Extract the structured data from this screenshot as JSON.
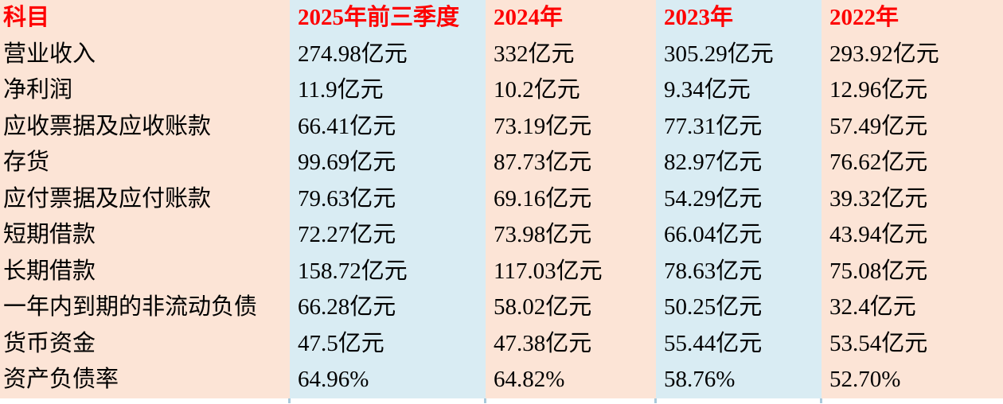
{
  "table": {
    "title": "financial-comparison-table",
    "header_text_color": "#fe0000",
    "peach_column_color": "#fce4d6",
    "blue_column_color": "#d9ecf3",
    "columns": [
      "科目",
      "2025年前三季度",
      "2024年",
      "2023年",
      "2022年"
    ],
    "rows": [
      {
        "label": "营业收入",
        "values": [
          "274.98亿元",
          "332亿元",
          "305.29亿元",
          "293.92亿元"
        ]
      },
      {
        "label": "净利润",
        "values": [
          "11.9亿元",
          "10.2亿元",
          "9.34亿元",
          "12.96亿元"
        ]
      },
      {
        "label": "应收票据及应收账款",
        "values": [
          "66.41亿元",
          "73.19亿元",
          "77.31亿元",
          "57.49亿元"
        ]
      },
      {
        "label": "存货",
        "values": [
          "99.69亿元",
          "87.73亿元",
          "82.97亿元",
          "76.62亿元"
        ]
      },
      {
        "label": "应付票据及应付账款",
        "values": [
          "79.63亿元",
          "69.16亿元",
          "54.29亿元",
          "39.32亿元"
        ]
      },
      {
        "label": "短期借款",
        "values": [
          "72.27亿元",
          "73.98亿元",
          "66.04亿元",
          "43.94亿元"
        ]
      },
      {
        "label": "长期借款",
        "values": [
          "158.72亿元",
          "117.03亿元",
          "78.63亿元",
          "75.08亿元"
        ]
      },
      {
        "label": "一年内到期的非流动负债",
        "values": [
          "66.28亿元",
          "58.02亿元",
          "50.25亿元",
          "32.4亿元"
        ]
      },
      {
        "label": "货币资金",
        "values": [
          "47.5亿元",
          "47.38亿元",
          "55.44亿元",
          "53.54亿元"
        ]
      },
      {
        "label": "资产负债率",
        "values": [
          "64.96%",
          "64.82%",
          "58.76%",
          "52.70%"
        ]
      }
    ]
  }
}
